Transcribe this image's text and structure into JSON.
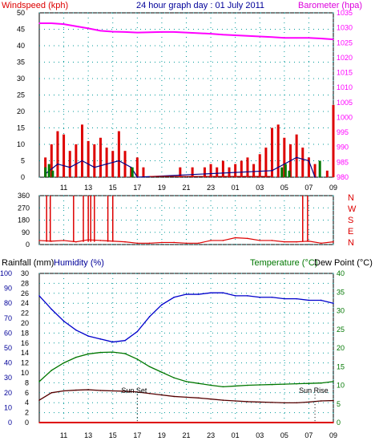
{
  "colors": {
    "red": "#dd0000",
    "magenta": "#ff00ff",
    "navy": "#000088",
    "blue": "#0000cc",
    "green": "#007700",
    "darkred": "#550000",
    "grid": "#009999",
    "title": "#000099"
  },
  "header": {
    "windspeed_label": "Windspeed (kph)",
    "title": "24 hour graph day : 01 July 2011",
    "barometer_label": "Barometer (hpa)"
  },
  "footer_header": {
    "rainfall_label": "Rainfall (mm)",
    "humidity_label": "Humidity (%)",
    "temperature_label": "Temperature (°C)",
    "dewpoint_label": "Dew Point (°C)"
  },
  "x_tick_labels": [
    "11",
    "13",
    "15",
    "17",
    "19",
    "21",
    "23",
    "01",
    "03",
    "05",
    "07",
    "09"
  ],
  "compass_labels": [
    "N",
    "W",
    "S",
    "E",
    "N"
  ],
  "annotations": {
    "sun_set": "Sun Set",
    "sun_rise": "Sun Rise"
  },
  "chart_data": [
    {
      "type": "line",
      "title": "24 hour graph day : 01 July 2011",
      "x_unit": "hour",
      "x_range": [
        9.0,
        9.25
      ],
      "y_left": {
        "label": "Windspeed (kph)",
        "range": [
          0,
          50
        ],
        "ticks": [
          0,
          5,
          10,
          15,
          20,
          25,
          30,
          35,
          40,
          45,
          50
        ]
      },
      "y_right": {
        "label": "Barometer (hpa)",
        "range": [
          980,
          1035
        ],
        "ticks": [
          980,
          985,
          990,
          995,
          1000,
          1005,
          1010,
          1015,
          1020,
          1025,
          1030,
          1035
        ]
      },
      "series": [
        {
          "name": "Windspeed (kph)",
          "axis": "left",
          "color": "#dd0000",
          "style": "bars",
          "x": [
            9.5,
            10,
            10.5,
            11,
            11.5,
            12,
            12.5,
            13,
            13.5,
            14,
            14.5,
            15,
            15.5,
            16,
            16.5,
            17,
            17.5,
            18,
            20.5,
            21.5,
            22.5,
            23,
            23.5,
            24,
            24.5,
            25,
            25.5,
            26,
            26.5,
            27,
            27.5,
            28,
            28.5,
            29,
            29.5,
            30,
            30.5,
            31,
            31.5,
            32,
            32.5,
            33
          ],
          "values": [
            6,
            10,
            14,
            13,
            8,
            10,
            16,
            11,
            10,
            12,
            9,
            8,
            14,
            8,
            3,
            6,
            3,
            0,
            3,
            3,
            3,
            4,
            3,
            5,
            3,
            4,
            5,
            6,
            4,
            7,
            9,
            15,
            16,
            12,
            10,
            13,
            9,
            6,
            4,
            0,
            2,
            22
          ]
        },
        {
          "name": "Gust",
          "axis": "left",
          "color": "#000088",
          "x": [
            9.5,
            10.5,
            11.5,
            12.5,
            13.5,
            14.5,
            15.5,
            16.5,
            17,
            28,
            29,
            30,
            31,
            31.5
          ],
          "values": [
            1,
            4,
            3,
            5,
            3,
            4,
            5,
            3,
            0,
            2,
            4,
            6,
            5,
            0
          ]
        },
        {
          "name": "Rain",
          "axis": "left",
          "color": "#007700",
          "style": "bars",
          "x": [
            9.5,
            9.8,
            10.1,
            16.6,
            28.8,
            29.1,
            29.4,
            31.9
          ],
          "values": [
            3,
            4,
            2,
            3,
            3,
            4,
            2,
            5
          ]
        },
        {
          "name": "Barometer (hpa)",
          "axis": "right",
          "color": "#ff00ff",
          "x": [
            9,
            10,
            11,
            12,
            13,
            14,
            15,
            16,
            17,
            18,
            19,
            20,
            21,
            22,
            23,
            24,
            25,
            26,
            27,
            28,
            29,
            30,
            31,
            32,
            33
          ],
          "values": [
            1031.5,
            1031.5,
            1031.2,
            1030.5,
            1029.8,
            1029.0,
            1028.7,
            1028.6,
            1028.4,
            1028.5,
            1028.6,
            1028.6,
            1028.4,
            1028.2,
            1028.0,
            1027.7,
            1027.5,
            1027.3,
            1027.1,
            1026.9,
            1026.6,
            1026.6,
            1026.6,
            1026.4,
            1026.1
          ]
        }
      ]
    },
    {
      "type": "line",
      "title": "",
      "y_range": [
        0,
        360
      ],
      "y_ticks": [
        0,
        90,
        180,
        270,
        360
      ],
      "series": [
        {
          "name": "Wind direction",
          "color": "#dd0000",
          "x": [
            9,
            10,
            11,
            12,
            13,
            14,
            15,
            16,
            17,
            18,
            19,
            20,
            21,
            22,
            23,
            24,
            25,
            26,
            27,
            28,
            29,
            30,
            31,
            32,
            33
          ],
          "values": [
            30,
            25,
            30,
            20,
            35,
            30,
            25,
            20,
            10,
            10,
            15,
            15,
            10,
            10,
            30,
            30,
            50,
            45,
            30,
            30,
            20,
            20,
            25,
            10,
            20
          ],
          "spikes_x": [
            9.6,
            9.9,
            11.8,
            12.6,
            13.0,
            13.2,
            13.5,
            14.6,
            15.0,
            30.5,
            30.9
          ],
          "spikes_to": 360
        }
      ]
    },
    {
      "type": "line",
      "title": "",
      "y_left_rain": {
        "label": "Rainfall (mm)",
        "range": [
          0,
          30
        ],
        "ticks": [
          0,
          2,
          4,
          6,
          8,
          10,
          12,
          14,
          16,
          18,
          20,
          22,
          24,
          26,
          28,
          30
        ]
      },
      "y_left_humidity": {
        "label": "Humidity (%)",
        "range": [
          0,
          100
        ],
        "ticks": [
          0,
          10,
          20,
          30,
          40,
          50,
          60,
          70,
          80,
          90,
          100
        ]
      },
      "y_right": {
        "label": "Temperature (°C)",
        "range": [
          0,
          40
        ],
        "ticks": [
          0,
          5,
          10,
          15,
          20,
          25,
          30,
          35,
          40
        ]
      },
      "series": [
        {
          "name": "Humidity (%)",
          "axis": "humidity",
          "color": "#0000cc",
          "x": [
            9,
            10,
            11,
            12,
            13,
            14,
            15,
            16,
            17,
            18,
            19,
            20,
            21,
            22,
            23,
            24,
            25,
            26,
            27,
            28,
            29,
            30,
            31,
            32,
            33
          ],
          "values": [
            85,
            76,
            68,
            62,
            58,
            56,
            54,
            55,
            61,
            71,
            79,
            84,
            86,
            86,
            87,
            87,
            85,
            85,
            84,
            84,
            83,
            83,
            82,
            82,
            80
          ]
        },
        {
          "name": "Temperature (°C)",
          "axis": "right",
          "color": "#007700",
          "x": [
            9,
            10,
            11,
            12,
            13,
            14,
            15,
            16,
            17,
            18,
            19,
            20,
            21,
            22,
            23,
            24,
            25,
            26,
            27,
            28,
            29,
            30,
            31,
            32,
            33
          ],
          "values": [
            11,
            14,
            16,
            17.5,
            18.4,
            18.8,
            18.9,
            18.5,
            17,
            15,
            13.5,
            12,
            11,
            10.5,
            10,
            9.6,
            9.8,
            10,
            10.1,
            10.2,
            10.3,
            10.4,
            10.5,
            10.6,
            11
          ]
        },
        {
          "name": "Dew Point (°C)",
          "axis": "right",
          "color": "#550000",
          "x": [
            9,
            10,
            11,
            12,
            13,
            14,
            15,
            16,
            17,
            18,
            19,
            20,
            21,
            22,
            23,
            24,
            25,
            26,
            27,
            28,
            29,
            30,
            31,
            32,
            33
          ],
          "values": [
            6,
            8,
            8.5,
            8.7,
            8.8,
            8.6,
            8.5,
            8.4,
            8.2,
            7.8,
            7.4,
            7.0,
            6.8,
            6.6,
            6.3,
            6.0,
            5.8,
            5.6,
            5.5,
            5.4,
            5.3,
            5.3,
            5.5,
            5.8,
            5.9
          ]
        },
        {
          "name": "Rainfall (mm)",
          "axis": "rain",
          "color": "#dd0000",
          "x": [
            9,
            33
          ],
          "values": [
            0,
            0
          ]
        }
      ],
      "sun_set_x": 17.0,
      "sun_rise_x": 31.5
    }
  ]
}
